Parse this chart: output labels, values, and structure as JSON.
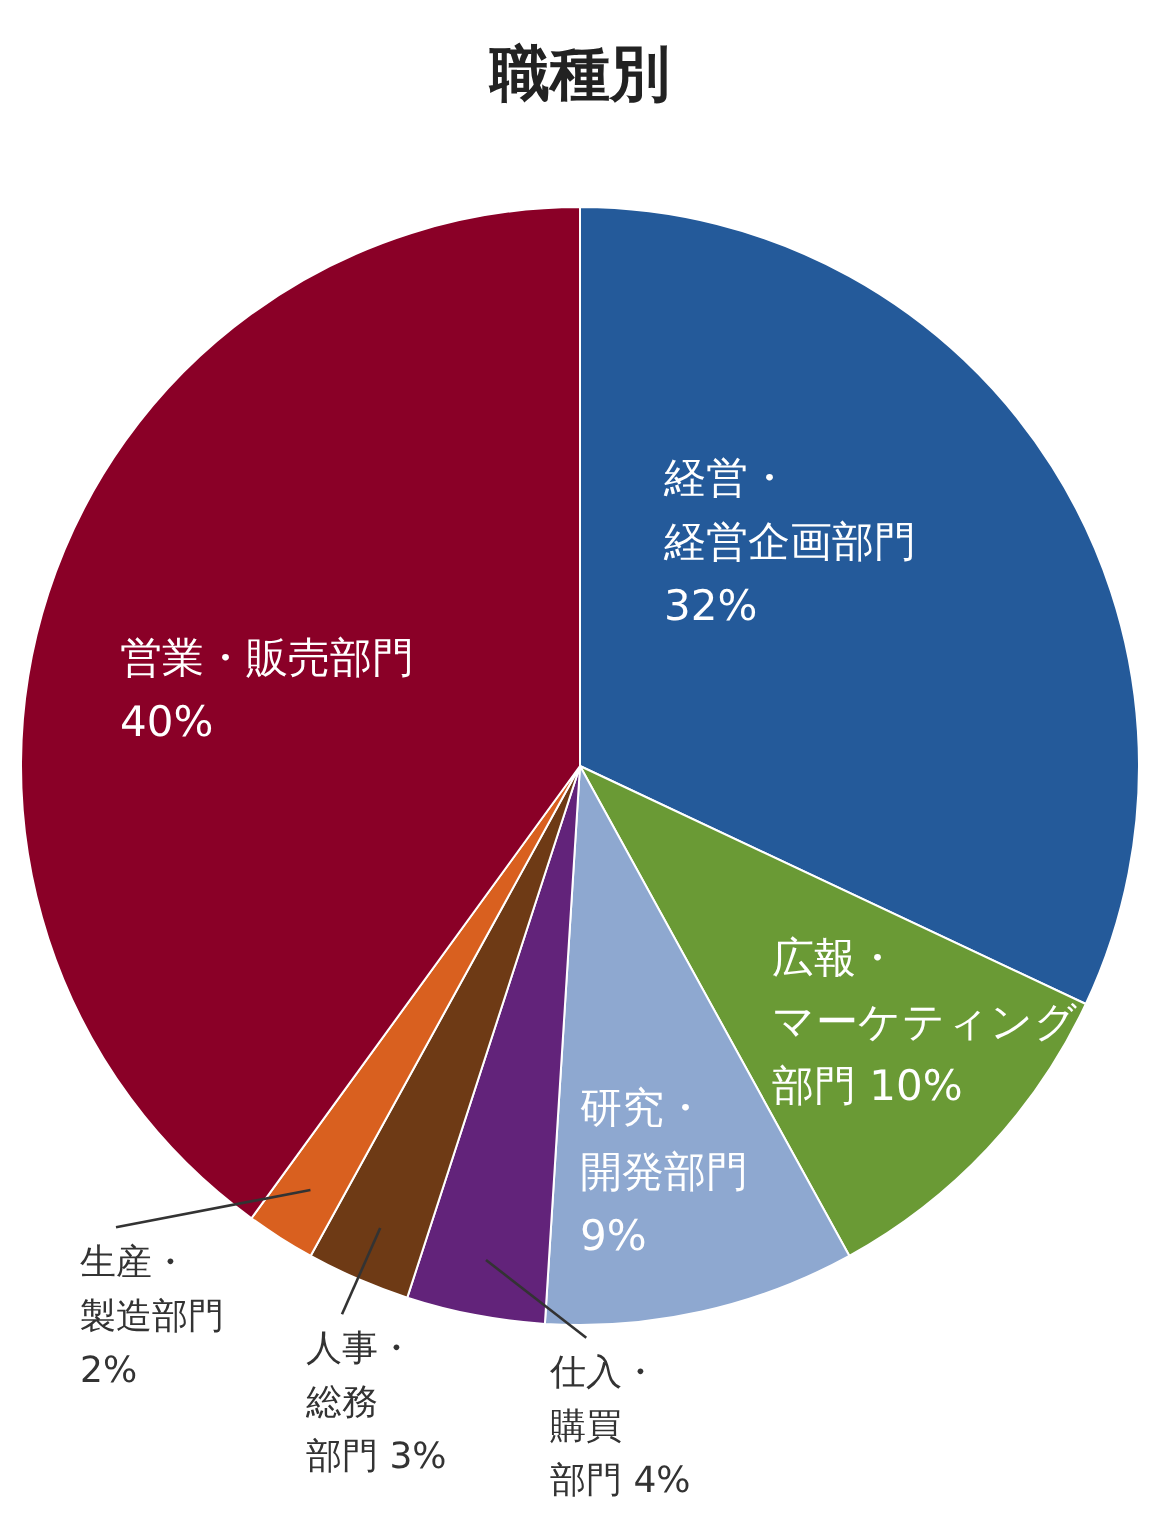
{
  "chart_data": {
    "type": "pie",
    "title": "職種別",
    "categories": [
      "経営・経営企画部門",
      "広報・マーケティング部門",
      "研究・開発部門",
      "仕入・購買部門",
      "人事・総務部門",
      "生産・製造部門",
      "営業・販売部門"
    ],
    "values": [
      32,
      10,
      9,
      4,
      3,
      2,
      40
    ],
    "colors": [
      "#245a9a",
      "#6a9a35",
      "#8ea8d0",
      "#62237a",
      "#6e3a15",
      "#d9601f",
      "#8a0027"
    ],
    "value_labels": [
      "32%",
      "10%",
      "9%",
      "4%",
      "3%",
      "2%",
      "40%"
    ],
    "legend": false
  }
}
